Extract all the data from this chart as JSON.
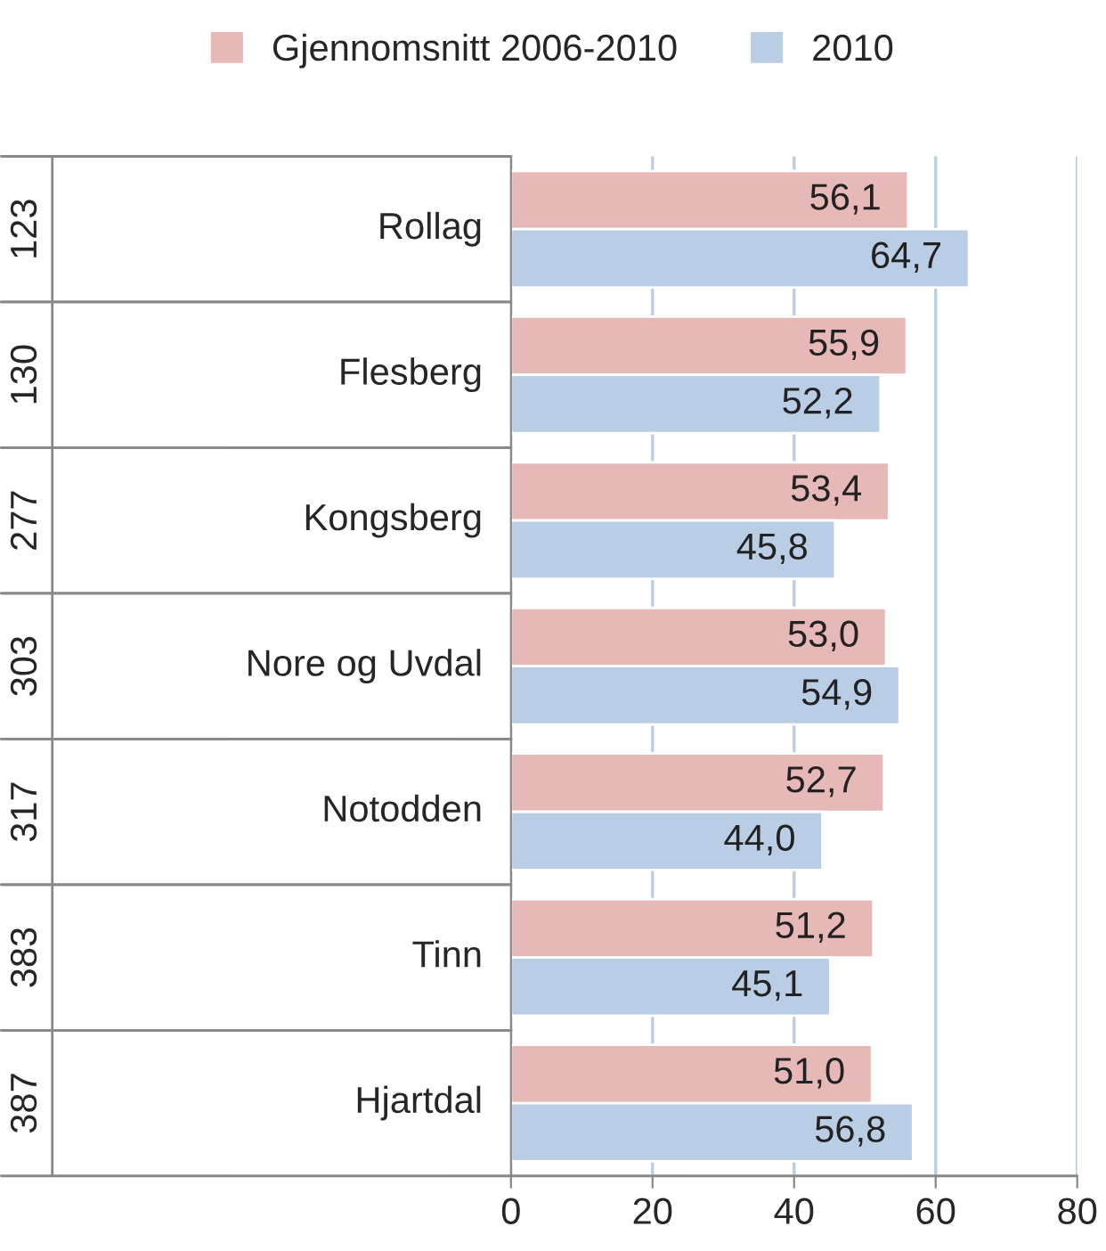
{
  "chart_data": {
    "type": "bar",
    "orientation": "horizontal",
    "categories": [
      "Rollag",
      "Flesberg",
      "Kongsberg",
      "Nore og Uvdal",
      "Notodden",
      "Tinn",
      "Hjartdal"
    ],
    "annotations": [
      "123",
      "130",
      "277",
      "303",
      "317",
      "383",
      "387"
    ],
    "series": [
      {
        "name": "Gjennomsnitt 2006-2010",
        "color": "#e6b9b8",
        "values": [
          56.1,
          55.9,
          53.4,
          53.0,
          52.7,
          51.2,
          51.0
        ]
      },
      {
        "name": "2010",
        "color": "#b9cde5",
        "values": [
          64.7,
          52.2,
          45.8,
          54.9,
          44.0,
          45.1,
          56.8
        ]
      }
    ],
    "value_labels": [
      [
        "56,1",
        "55,9",
        "53,4",
        "53,0",
        "52,7",
        "51,2",
        "51,0"
      ],
      [
        "64,7",
        "52,2",
        "45,8",
        "54,9",
        "44,0",
        "45,1",
        "56,8"
      ]
    ],
    "xlim": [
      0,
      80
    ],
    "xticks": [
      0,
      20,
      40,
      60,
      80
    ],
    "grid": "x",
    "legend": "top"
  }
}
